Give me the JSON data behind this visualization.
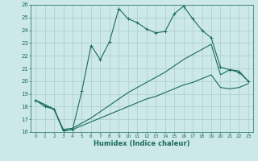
{
  "xlabel": "Humidex (Indice chaleur)",
  "background_color": "#cce8e8",
  "grid_color": "#aacccc",
  "line_color": "#1a6b5a",
  "xlim": [
    -0.5,
    23.5
  ],
  "ylim": [
    16,
    26
  ],
  "yticks": [
    16,
    17,
    18,
    19,
    20,
    21,
    22,
    23,
    24,
    25,
    26
  ],
  "xticks": [
    0,
    1,
    2,
    3,
    4,
    5,
    6,
    7,
    8,
    9,
    10,
    11,
    12,
    13,
    14,
    15,
    16,
    17,
    18,
    19,
    20,
    21,
    22,
    23
  ],
  "line1_x": [
    0,
    1,
    2,
    3,
    4,
    5,
    6,
    7,
    8,
    9,
    10,
    11,
    12,
    13,
    14,
    15,
    16,
    17,
    18,
    19,
    20,
    21,
    22,
    23
  ],
  "line1_y": [
    18.5,
    18.0,
    17.8,
    16.1,
    16.2,
    19.2,
    22.8,
    21.7,
    23.1,
    25.7,
    24.9,
    24.6,
    24.1,
    23.8,
    23.9,
    25.3,
    25.9,
    24.9,
    24.0,
    23.4,
    21.1,
    20.9,
    20.7,
    20.0
  ],
  "line2_x": [
    0,
    2,
    3,
    4,
    5,
    6,
    7,
    8,
    9,
    10,
    11,
    12,
    13,
    14,
    15,
    16,
    17,
    18,
    19,
    20,
    21,
    22,
    23
  ],
  "line2_y": [
    18.5,
    17.8,
    16.2,
    16.3,
    16.7,
    17.1,
    17.6,
    18.1,
    18.6,
    19.1,
    19.5,
    19.9,
    20.3,
    20.7,
    21.2,
    21.7,
    22.1,
    22.5,
    22.9,
    20.5,
    20.9,
    20.8,
    20.0
  ],
  "line3_x": [
    0,
    2,
    3,
    4,
    5,
    6,
    7,
    8,
    9,
    10,
    11,
    12,
    13,
    14,
    15,
    16,
    17,
    18,
    19,
    20,
    21,
    22,
    23
  ],
  "line3_y": [
    18.5,
    17.8,
    16.1,
    16.2,
    16.5,
    16.8,
    17.1,
    17.4,
    17.7,
    18.0,
    18.3,
    18.6,
    18.8,
    19.1,
    19.4,
    19.7,
    19.9,
    20.2,
    20.5,
    19.5,
    19.4,
    19.5,
    19.8
  ]
}
